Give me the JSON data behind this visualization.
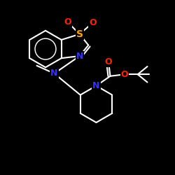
{
  "background_color": "#000000",
  "bond_color": "#ffffff",
  "atom_colors": {
    "N": "#3333ff",
    "S": "#ffa500",
    "O": "#ff2200",
    "C": "#ffffff"
  },
  "figsize": [
    2.5,
    2.5
  ],
  "dpi": 100,
  "xlim": [
    0,
    10
  ],
  "ylim": [
    0,
    10
  ]
}
